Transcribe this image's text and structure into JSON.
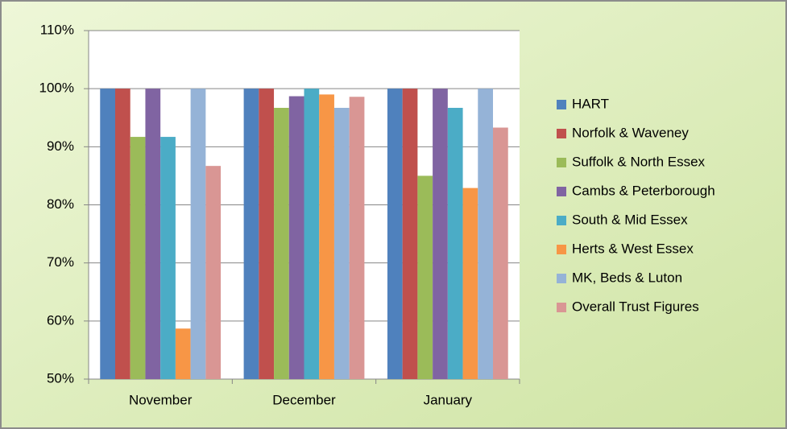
{
  "chart_data": {
    "type": "bar",
    "categories": [
      "November",
      "December",
      "January"
    ],
    "series": [
      {
        "name": "HART",
        "color": "#4f81bd",
        "values": [
          100,
          100,
          100
        ]
      },
      {
        "name": "Norfolk & Waveney",
        "color": "#c0504d",
        "values": [
          100,
          100,
          100
        ]
      },
      {
        "name": "Suffolk & North Essex",
        "color": "#9bbb59",
        "values": [
          91.7,
          96.7,
          85
        ]
      },
      {
        "name": "Cambs & Peterborough",
        "color": "#8064a2",
        "values": [
          100,
          98.7,
          100
        ]
      },
      {
        "name": "South & Mid Essex",
        "color": "#4bacc6",
        "values": [
          91.7,
          100,
          96.7
        ]
      },
      {
        "name": "Herts & West Essex",
        "color": "#f79646",
        "values": [
          58.7,
          99,
          82.9
        ]
      },
      {
        "name": "MK, Beds & Luton",
        "color": "#95b3d7",
        "values": [
          100,
          96.7,
          100
        ]
      },
      {
        "name": "Overall Trust Figures",
        "color": "#d99694",
        "values": [
          86.7,
          98.6,
          93.3
        ]
      }
    ],
    "ylim": [
      50,
      110
    ],
    "yticks": [
      {
        "value": 50,
        "label": "50%"
      },
      {
        "value": 60,
        "label": "60%"
      },
      {
        "value": 70,
        "label": "70%"
      },
      {
        "value": 80,
        "label": "80%"
      },
      {
        "value": 90,
        "label": "90%"
      },
      {
        "value": 100,
        "label": "100%"
      },
      {
        "value": 110,
        "label": "110%"
      }
    ],
    "grid": true,
    "legend": "right"
  }
}
